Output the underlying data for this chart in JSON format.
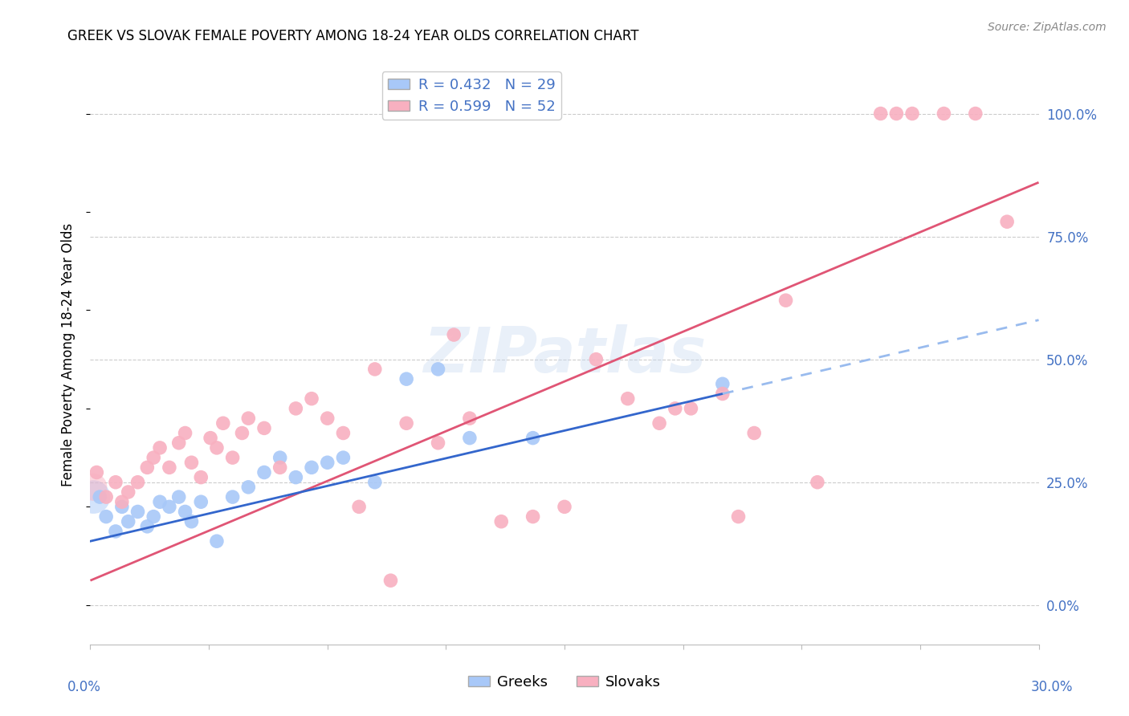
{
  "title": "GREEK VS SLOVAK FEMALE POVERTY AMONG 18-24 YEAR OLDS CORRELATION CHART",
  "source": "Source: ZipAtlas.com",
  "ylabel": "Female Poverty Among 18-24 Year Olds",
  "ytick_labels": [
    "0.0%",
    "25.0%",
    "50.0%",
    "75.0%",
    "100.0%"
  ],
  "ytick_values": [
    0,
    25,
    50,
    75,
    100
  ],
  "watermark_text": "ZIPatlas",
  "greek_color": "#a8c8f8",
  "slovak_color": "#f8b0c0",
  "greek_line_color": "#3366cc",
  "greek_dash_color": "#99bbee",
  "slovak_line_color": "#e05575",
  "text_color_blue": "#4472c4",
  "xlim": [
    0,
    30
  ],
  "ylim": [
    -8,
    110
  ],
  "greek_R": 0.432,
  "greek_N": 29,
  "slovak_R": 0.599,
  "slovak_N": 52,
  "greeks_x": [
    0.3,
    0.5,
    0.8,
    1.0,
    1.2,
    1.5,
    1.8,
    2.0,
    2.2,
    2.5,
    2.8,
    3.0,
    3.2,
    3.5,
    4.0,
    4.5,
    5.0,
    5.5,
    6.0,
    6.5,
    7.0,
    7.5,
    8.0,
    9.0,
    10.0,
    11.0,
    12.0,
    14.0,
    20.0
  ],
  "greeks_y": [
    22,
    18,
    15,
    20,
    17,
    19,
    16,
    18,
    21,
    20,
    22,
    19,
    17,
    21,
    13,
    22,
    24,
    27,
    30,
    26,
    28,
    29,
    30,
    25,
    46,
    48,
    34,
    34,
    45
  ],
  "slovaks_x": [
    0.2,
    0.5,
    0.8,
    1.0,
    1.2,
    1.5,
    1.8,
    2.0,
    2.2,
    2.5,
    2.8,
    3.0,
    3.2,
    3.5,
    3.8,
    4.0,
    4.2,
    4.5,
    4.8,
    5.0,
    5.5,
    6.0,
    6.5,
    7.0,
    7.5,
    8.0,
    8.5,
    9.0,
    10.0,
    11.0,
    12.0,
    13.0,
    14.0,
    15.0,
    16.0,
    17.0,
    18.0,
    18.5,
    19.0,
    20.0,
    21.0,
    23.0,
    25.0,
    26.0,
    27.0,
    28.0,
    29.0,
    9.5,
    11.5,
    22.0,
    25.5,
    20.5
  ],
  "slovaks_y": [
    27,
    22,
    25,
    21,
    23,
    25,
    28,
    30,
    32,
    28,
    33,
    35,
    29,
    26,
    34,
    32,
    37,
    30,
    35,
    38,
    36,
    28,
    40,
    42,
    38,
    35,
    20,
    48,
    37,
    33,
    38,
    17,
    18,
    20,
    50,
    42,
    37,
    40,
    40,
    43,
    35,
    25,
    100,
    100,
    100,
    100,
    78,
    5,
    55,
    62,
    100,
    18
  ],
  "greek_line_intercept": 13.0,
  "greek_line_slope": 1.5,
  "slovak_line_intercept": 5.0,
  "slovak_line_slope": 2.7,
  "greek_solid_end_x": 20.0,
  "greek_dash_start_x": 20.0,
  "greek_dash_end_x": 30.0
}
